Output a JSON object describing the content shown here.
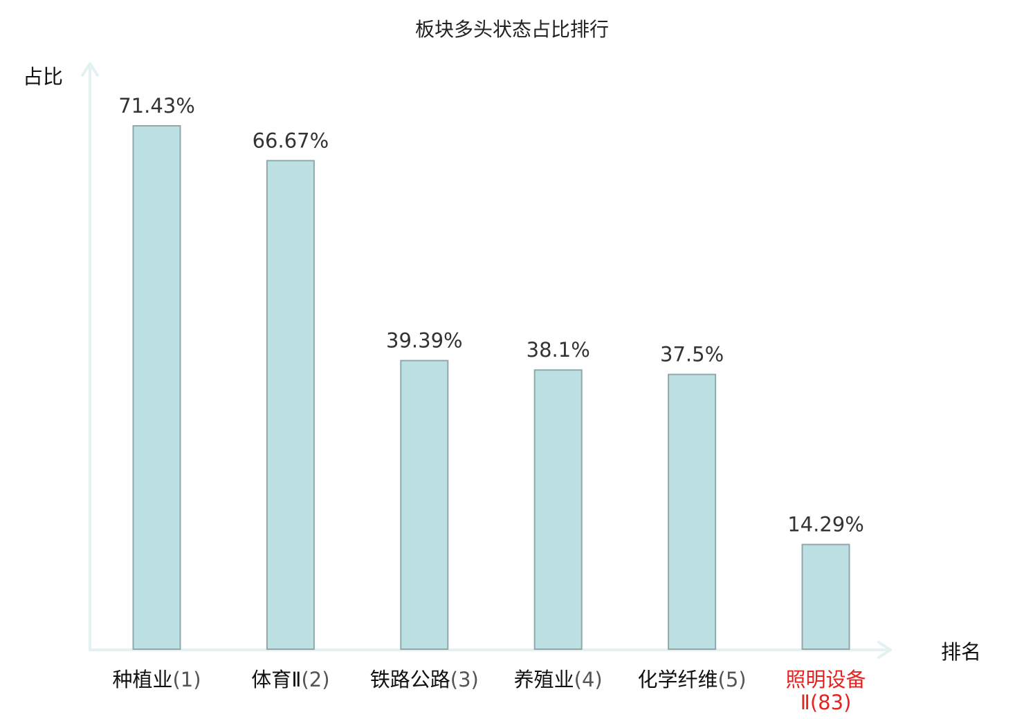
{
  "chart_data": {
    "type": "bar",
    "title": "板块多头状态占比排行",
    "ylabel": "占比",
    "xlabel": "排名",
    "ylim": [
      0,
      100
    ],
    "grid": false,
    "categories": [
      {
        "name": "种植业",
        "rank": "(1)",
        "highlight": false
      },
      {
        "name": "体育Ⅱ",
        "rank": "(2)",
        "highlight": false
      },
      {
        "name": "铁路公路",
        "rank": "(3)",
        "highlight": false
      },
      {
        "name": "养殖业",
        "rank": "(4)",
        "highlight": false
      },
      {
        "name": "化学纤维",
        "rank": "(5)",
        "highlight": false
      },
      {
        "name": "照明设备",
        "name_line2": "Ⅱ(83)",
        "rank": "",
        "highlight": true
      }
    ],
    "values": [
      71.43,
      66.67,
      39.39,
      38.1,
      37.5,
      14.29
    ],
    "value_labels": [
      "71.43%",
      "66.67%",
      "39.39%",
      "38.1%",
      "37.5%",
      "14.29%"
    ],
    "colors": {
      "bar_fill": "#bde0e3",
      "bar_stroke": "#8fa8ab",
      "axis": "#e3f2f1",
      "highlight_text": "#e8231f"
    }
  }
}
